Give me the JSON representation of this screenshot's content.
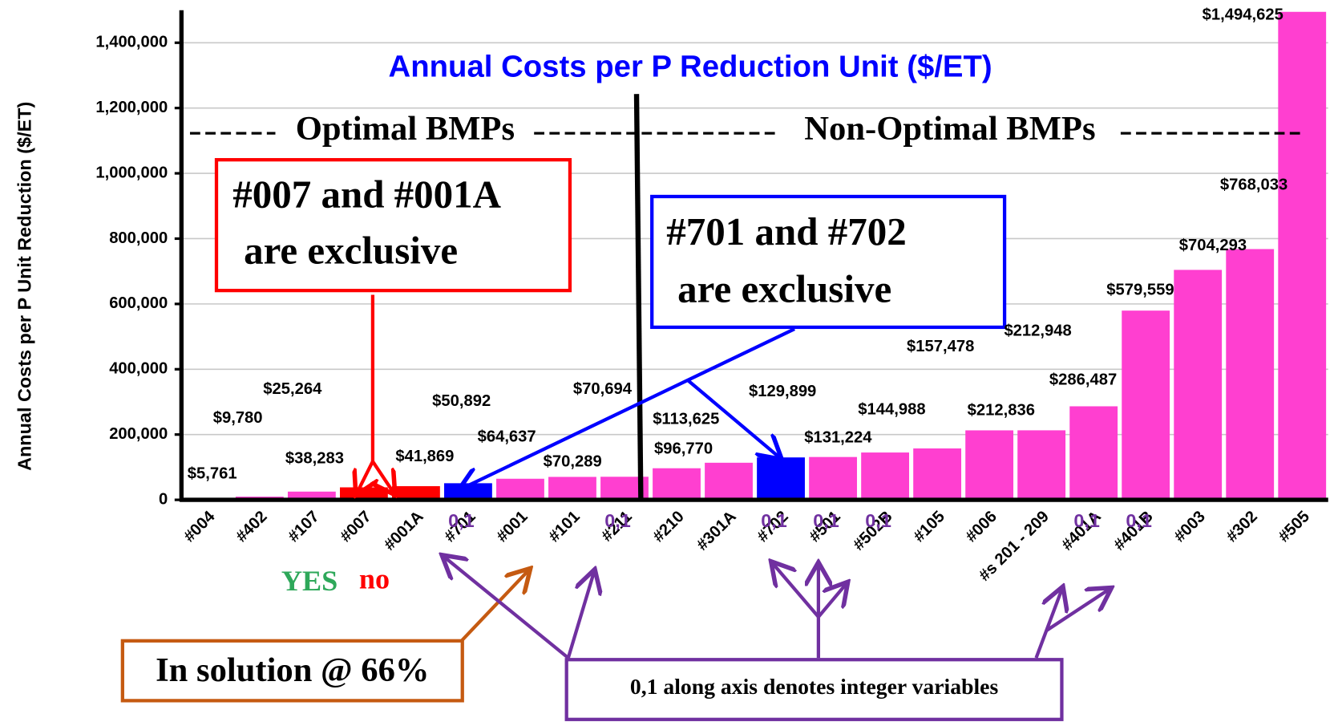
{
  "chart_data": {
    "type": "bar",
    "title": "Annual Costs per P Reduction Unit ($/ET)",
    "y_label": "Annual Costs per P Unit Reduction ($/ET)",
    "categories": [
      "#004",
      "#402",
      "#107",
      "#007",
      "#001A",
      "#701",
      "#001",
      "#101",
      "#211",
      "#210",
      "#301A",
      "#702",
      "#501",
      "#502B",
      "#105",
      "#006",
      "#s 201 - 209",
      "#401A",
      "#401B",
      "#003",
      "#302",
      "#505"
    ],
    "values": [
      5761,
      9780,
      25264,
      38283,
      41869,
      50892,
      64637,
      70289,
      70694,
      96770,
      113625,
      129899,
      131224,
      144988,
      157478,
      212836,
      212948,
      286487,
      579559,
      704293,
      768033,
      1494625
    ],
    "value_labels": [
      "$5,761",
      "$9,780",
      "$25,264",
      "$38,283",
      "$41,869",
      "$50,892",
      "$64,637",
      "$70,289",
      "$70,694",
      "$96,770",
      "$113,625",
      "$129,899",
      "$131,224",
      "$144,988",
      "$157,478",
      "$212,836",
      "$212,948",
      "$286,487",
      "$579,559",
      "$704,293",
      "$768,033",
      "$1,494,625"
    ],
    "colors": [
      "#ff3fd0",
      "#ff3fd0",
      "#ff3fd0",
      "#ff0000",
      "#ff0000",
      "#0000ff",
      "#ff3fd0",
      "#ff3fd0",
      "#ff3fd0",
      "#ff3fd0",
      "#ff3fd0",
      "#0000ff",
      "#ff3fd0",
      "#ff3fd0",
      "#ff3fd0",
      "#ff3fd0",
      "#ff3fd0",
      "#ff3fd0",
      "#ff3fd0",
      "#ff3fd0",
      "#ff3fd0",
      "#ff3fd0"
    ],
    "integer_labels": [
      null,
      null,
      null,
      null,
      null,
      "0,1",
      null,
      null,
      "0,1",
      null,
      null,
      "0,1",
      "0,1",
      "0,1",
      null,
      null,
      null,
      "0,1",
      "0,1",
      null,
      null,
      null
    ],
    "ylim": [
      0,
      1500000
    ],
    "yticks": [
      0,
      {
        "value": 200000,
        "label": "200,000"
      },
      {
        "value": 400000,
        "label": "400,000"
      },
      {
        "value": 600000,
        "label": "600,000"
      },
      {
        "value": 800000,
        "label": "800,000"
      },
      {
        "value": 1000000,
        "label": "1,000,000"
      },
      {
        "value": 1200000,
        "label": "1,200,000"
      },
      {
        "value": 1400000,
        "label": "1,400,000"
      }
    ],
    "grid": true,
    "annotations": {
      "optimal": "Optimal BMPs",
      "non_optimal": "Non-Optimal BMPs",
      "yes": "YES",
      "no": "no",
      "box_exclusive_a": [
        "#007 and #001A",
        "are exclusive"
      ],
      "box_exclusive_b": [
        "#701 and #702",
        "are exclusive"
      ],
      "box_solution": "In solution @ 66%",
      "box_integer": "0,1 along axis denotes integer variables"
    }
  }
}
